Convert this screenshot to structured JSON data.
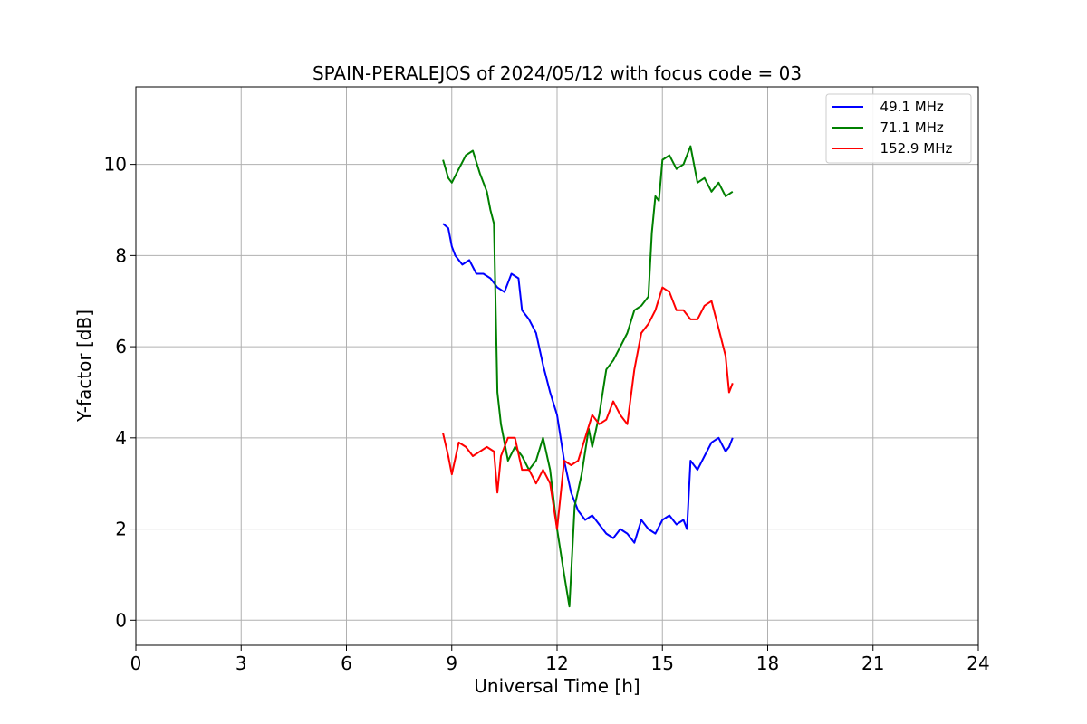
{
  "chart_data": {
    "type": "line",
    "title": "SPAIN-PERALEJOS of 2024/05/12 with focus code = 03",
    "xlabel": "Universal Time [h]",
    "ylabel": "Y-factor [dB]",
    "xlim": [
      0,
      24
    ],
    "ylim": [
      -0.55,
      11.7
    ],
    "xticks": [
      0,
      3,
      6,
      9,
      12,
      15,
      18,
      21,
      24
    ],
    "yticks": [
      0,
      2,
      4,
      6,
      8,
      10
    ],
    "grid": true,
    "legend_position": "top-right",
    "series": [
      {
        "name": "  49.1 MHz",
        "color": "#0000ff",
        "x": [
          8.75,
          8.9,
          9.0,
          9.1,
          9.3,
          9.5,
          9.7,
          9.9,
          10.1,
          10.3,
          10.5,
          10.7,
          10.9,
          11.0,
          11.2,
          11.4,
          11.6,
          11.8,
          12.0,
          12.2,
          12.4,
          12.6,
          12.8,
          13.0,
          13.2,
          13.4,
          13.6,
          13.8,
          14.0,
          14.2,
          14.4,
          14.6,
          14.8,
          15.0,
          15.2,
          15.4,
          15.6,
          15.7,
          15.8,
          16.0,
          16.2,
          16.4,
          16.6,
          16.8,
          16.9,
          17.0
        ],
        "y": [
          8.7,
          8.6,
          8.2,
          8.0,
          7.8,
          7.9,
          7.6,
          7.6,
          7.5,
          7.3,
          7.2,
          7.6,
          7.5,
          6.8,
          6.6,
          6.3,
          5.6,
          5.0,
          4.5,
          3.5,
          2.8,
          2.4,
          2.2,
          2.3,
          2.1,
          1.9,
          1.8,
          2.0,
          1.9,
          1.7,
          2.2,
          2.0,
          1.9,
          2.2,
          2.3,
          2.1,
          2.2,
          2.0,
          3.5,
          3.3,
          3.6,
          3.9,
          4.0,
          3.7,
          3.8,
          4.0
        ]
      },
      {
        "name": "  71.1 MHz",
        "color": "#008000",
        "x": [
          8.75,
          8.9,
          9.0,
          9.2,
          9.4,
          9.6,
          9.8,
          10.0,
          10.1,
          10.2,
          10.3,
          10.4,
          10.6,
          10.8,
          11.0,
          11.2,
          11.4,
          11.6,
          11.8,
          12.0,
          12.2,
          12.35,
          12.5,
          12.7,
          12.9,
          13.0,
          13.2,
          13.4,
          13.6,
          13.8,
          14.0,
          14.2,
          14.4,
          14.6,
          14.7,
          14.8,
          14.9,
          15.0,
          15.2,
          15.4,
          15.6,
          15.8,
          16.0,
          16.2,
          16.4,
          16.6,
          16.8,
          17.0
        ],
        "y": [
          10.1,
          9.7,
          9.6,
          9.9,
          10.2,
          10.3,
          9.8,
          9.4,
          9.0,
          8.7,
          5.0,
          4.3,
          3.5,
          3.8,
          3.6,
          3.3,
          3.5,
          4.0,
          3.3,
          2.0,
          1.0,
          0.3,
          2.5,
          3.2,
          4.2,
          3.8,
          4.5,
          5.5,
          5.7,
          6.0,
          6.3,
          6.8,
          6.9,
          7.1,
          8.5,
          9.3,
          9.2,
          10.1,
          10.2,
          9.9,
          10.0,
          10.4,
          9.6,
          9.7,
          9.4,
          9.6,
          9.3,
          9.4
        ]
      },
      {
        "name": "  152.9 MHz",
        "color": "#ff0000",
        "x": [
          8.75,
          8.9,
          9.0,
          9.2,
          9.4,
          9.6,
          9.8,
          10.0,
          10.2,
          10.3,
          10.4,
          10.6,
          10.8,
          11.0,
          11.2,
          11.4,
          11.6,
          11.8,
          12.0,
          12.2,
          12.4,
          12.6,
          12.8,
          13.0,
          13.2,
          13.4,
          13.6,
          13.8,
          14.0,
          14.2,
          14.4,
          14.6,
          14.8,
          15.0,
          15.2,
          15.4,
          15.6,
          15.8,
          16.0,
          16.2,
          16.4,
          16.6,
          16.8,
          16.9,
          17.0
        ],
        "y": [
          4.1,
          3.6,
          3.2,
          3.9,
          3.8,
          3.6,
          3.7,
          3.8,
          3.7,
          2.8,
          3.6,
          4.0,
          4.0,
          3.3,
          3.3,
          3.0,
          3.3,
          3.0,
          2.0,
          3.5,
          3.4,
          3.5,
          4.0,
          4.5,
          4.3,
          4.4,
          4.8,
          4.5,
          4.3,
          5.5,
          6.3,
          6.5,
          6.8,
          7.3,
          7.2,
          6.8,
          6.8,
          6.6,
          6.6,
          6.9,
          7.0,
          6.4,
          5.8,
          5.0,
          5.2
        ]
      }
    ]
  }
}
